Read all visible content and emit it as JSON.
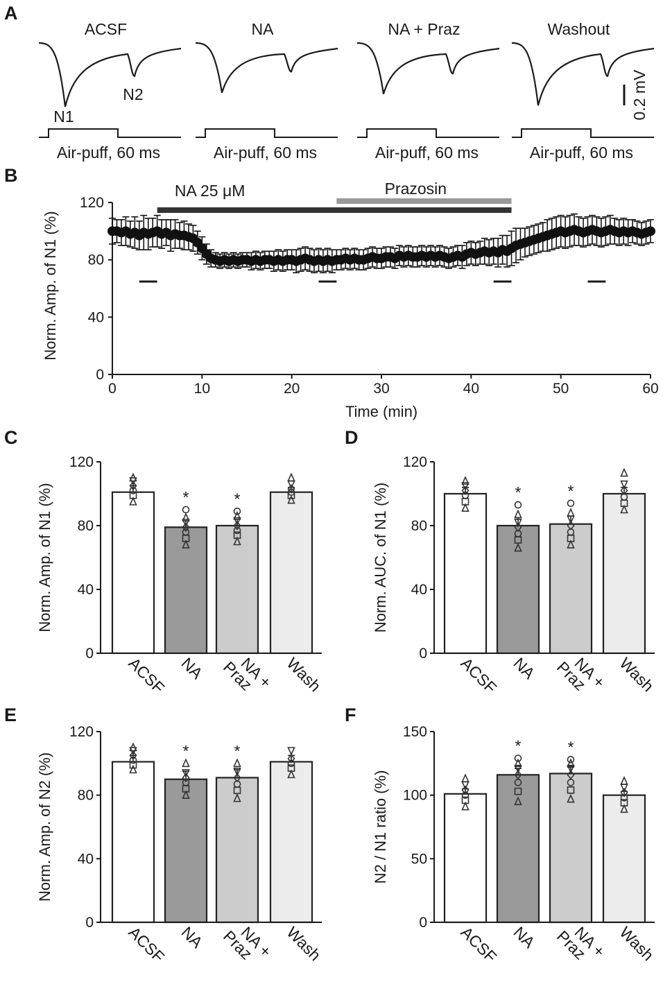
{
  "panels": {
    "A": "A",
    "B": "B",
    "C": "C",
    "D": "D",
    "E": "E",
    "F": "F"
  },
  "panel_a": {
    "traces": [
      {
        "title": "ACSF",
        "stim_label": "Air-puff, 60 ms",
        "n1_amp": 1.0,
        "n2_amp": 0.52
      },
      {
        "title": "NA",
        "stim_label": "Air-puff, 60 ms",
        "n1_amp": 0.78,
        "n2_amp": 0.45
      },
      {
        "title": "NA + Praz",
        "stim_label": "Air-puff, 60 ms",
        "n1_amp": 0.8,
        "n2_amp": 0.48
      },
      {
        "title": "Washout",
        "stim_label": "Air-puff, 60 ms",
        "n1_amp": 0.98,
        "n2_amp": 0.52
      }
    ],
    "peak_labels": {
      "n1": "N1",
      "n2": "N2"
    },
    "scale_bar": "0.2 mV",
    "colors": {
      "trace": "#1a1a1a"
    }
  },
  "chart_data": [
    {
      "panel": "B",
      "type": "line",
      "title": "",
      "xlabel": "Time (min)",
      "ylabel": "Norm. Amp. of N1 (%)",
      "xlim": [
        0,
        60
      ],
      "ylim": [
        0,
        120
      ],
      "xticks": [
        0,
        10,
        20,
        30,
        40,
        50,
        60
      ],
      "yticks": [
        0,
        40,
        80,
        120
      ],
      "drug_bars": [
        {
          "label": "NA 25 μM",
          "start": 5,
          "end": 44.5,
          "color": "#333333"
        },
        {
          "label": "Prazosin",
          "start": 25,
          "end": 44.5,
          "color": "#999999"
        }
      ],
      "analysis_windows": [
        [
          3,
          5
        ],
        [
          23,
          25
        ],
        [
          42.5,
          44.5
        ],
        [
          53,
          55
        ]
      ],
      "series": [
        {
          "name": "N1 amplitude",
          "x": [
            0,
            0.5,
            1,
            1.5,
            2,
            2.5,
            3,
            3.5,
            4,
            4.5,
            5,
            5.5,
            6,
            6.5,
            7,
            7.5,
            8,
            8.5,
            9,
            9.5,
            10,
            10.5,
            11,
            11.5,
            12,
            12.5,
            13,
            13.5,
            14,
            14.5,
            15,
            15.5,
            16,
            16.5,
            17,
            17.5,
            18,
            18.5,
            19,
            19.5,
            20,
            20.5,
            21,
            21.5,
            22,
            22.5,
            23,
            23.5,
            24,
            24.5,
            25,
            25.5,
            26,
            26.5,
            27,
            27.5,
            28,
            28.5,
            29,
            29.5,
            30,
            30.5,
            31,
            31.5,
            32,
            32.5,
            33,
            33.5,
            34,
            34.5,
            35,
            35.5,
            36,
            36.5,
            37,
            37.5,
            38,
            38.5,
            39,
            39.5,
            40,
            40.5,
            41,
            41.5,
            42,
            42.5,
            43,
            43.5,
            44,
            44.5,
            45,
            45.5,
            46,
            46.5,
            47,
            47.5,
            48,
            48.5,
            49,
            49.5,
            50,
            50.5,
            51,
            51.5,
            52,
            52.5,
            53,
            53.5,
            54,
            54.5,
            55,
            55.5,
            56,
            56.5,
            57,
            57.5,
            58,
            58.5,
            59,
            59.5,
            60
          ],
          "y": [
            100,
            100,
            99,
            100,
            98,
            99,
            97,
            99,
            98,
            99,
            100,
            98,
            99,
            97,
            98,
            97,
            97,
            96,
            95,
            92,
            88,
            84,
            81,
            80,
            79,
            80,
            79,
            80,
            79,
            80,
            80,
            79,
            80,
            79,
            80,
            80,
            79,
            80,
            79,
            80,
            80,
            79,
            80,
            81,
            80,
            79,
            80,
            79,
            80,
            79,
            80,
            80,
            81,
            80,
            81,
            80,
            80,
            81,
            82,
            81,
            81,
            82,
            82,
            81,
            83,
            82,
            83,
            82,
            82,
            83,
            82,
            83,
            82,
            83,
            82,
            81,
            82,
            83,
            82,
            84,
            85,
            84,
            85,
            86,
            85,
            86,
            85,
            87,
            86,
            88,
            90,
            91,
            92,
            93,
            94,
            95,
            96,
            97,
            98,
            99,
            100,
            99,
            100,
            101,
            100,
            99,
            100,
            101,
            100,
            99,
            100,
            101,
            100,
            99,
            100,
            99,
            100,
            99,
            98,
            99,
            100
          ],
          "error": [
            9,
            8,
            9,
            10,
            9,
            11,
            10,
            12,
            11,
            10,
            11,
            10,
            9,
            11,
            10,
            9,
            10,
            9,
            9,
            8,
            8,
            7,
            6,
            5,
            5,
            5,
            5,
            5,
            5,
            5,
            5,
            6,
            6,
            6,
            6,
            6,
            7,
            7,
            7,
            7,
            7,
            8,
            8,
            8,
            8,
            8,
            8,
            8,
            8,
            8,
            7,
            7,
            7,
            7,
            7,
            7,
            7,
            7,
            7,
            7,
            7,
            7,
            7,
            7,
            7,
            7,
            7,
            7,
            7,
            7,
            7,
            7,
            7,
            7,
            7,
            7,
            7,
            7,
            8,
            8,
            8,
            8,
            8,
            9,
            9,
            9,
            10,
            10,
            11,
            12,
            12,
            11,
            10,
            10,
            10,
            10,
            10,
            11,
            11,
            11,
            11,
            11,
            11,
            11,
            10,
            10,
            10,
            10,
            10,
            10,
            10,
            10,
            9,
            9,
            9,
            9,
            8,
            8,
            8,
            8,
            8
          ],
          "color": "#111111"
        }
      ]
    },
    {
      "panel": "C",
      "type": "bar",
      "title": "",
      "categories": [
        "ACSF",
        "NA",
        "NA + Praz",
        "Wash"
      ],
      "values": [
        101,
        79,
        80,
        101
      ],
      "errors": [
        4,
        4,
        4,
        3
      ],
      "significance": [
        "",
        "*",
        "*",
        ""
      ],
      "bar_colors": [
        "#ffffff",
        "#9a9a9a",
        "#cccccc",
        "#ececec"
      ],
      "xlabel": "",
      "ylabel": "Norm. Amp. of N1 (%)",
      "ylim": [
        0,
        120
      ],
      "yticks": [
        0,
        40,
        80,
        120
      ],
      "points": [
        [
          95,
          99,
          102,
          105,
          108,
          110
        ],
        [
          68,
          72,
          76,
          79,
          82,
          85,
          90
        ],
        [
          70,
          74,
          77,
          80,
          83,
          86,
          89
        ],
        [
          96,
          99,
          101,
          103,
          106,
          110
        ]
      ]
    },
    {
      "panel": "D",
      "type": "bar",
      "title": "",
      "categories": [
        "ACSF",
        "NA",
        "NA + Praz",
        "Wash"
      ],
      "values": [
        100,
        80,
        81,
        100
      ],
      "errors": [
        4,
        5,
        5,
        4
      ],
      "significance": [
        "",
        "*",
        "*",
        ""
      ],
      "bar_colors": [
        "#ffffff",
        "#9a9a9a",
        "#cccccc",
        "#ececec"
      ],
      "xlabel": "",
      "ylabel": "Norm. AUC. of N1 (%)",
      "ylim": [
        0,
        120
      ],
      "yticks": [
        0,
        40,
        80,
        120
      ],
      "points": [
        [
          91,
          95,
          99,
          102,
          105,
          108
        ],
        [
          66,
          71,
          75,
          79,
          82,
          87,
          93
        ],
        [
          68,
          72,
          76,
          80,
          84,
          88,
          94
        ],
        [
          90,
          94,
          98,
          102,
          106,
          113
        ]
      ]
    },
    {
      "panel": "E",
      "type": "bar",
      "title": "",
      "categories": [
        "ACSF",
        "NA",
        "NA + Praz",
        "Wash"
      ],
      "values": [
        101,
        90,
        91,
        101
      ],
      "errors": [
        4,
        5,
        5,
        4
      ],
      "significance": [
        "",
        "*",
        "*",
        ""
      ],
      "bar_colors": [
        "#ffffff",
        "#9a9a9a",
        "#cccccc",
        "#ececec"
      ],
      "xlabel": "",
      "ylabel": "Norm. Amp. of N2 (%)",
      "ylim": [
        0,
        120
      ],
      "yticks": [
        0,
        40,
        80,
        120
      ],
      "points": [
        [
          96,
          99,
          102,
          105,
          108,
          110
        ],
        [
          80,
          84,
          88,
          91,
          94,
          100
        ],
        [
          78,
          83,
          87,
          91,
          95,
          100
        ],
        [
          93,
          97,
          100,
          103,
          108
        ]
      ]
    },
    {
      "panel": "F",
      "type": "bar",
      "title": "",
      "categories": [
        "ACSF",
        "NA",
        "NA + Praz",
        "Wash"
      ],
      "values": [
        101,
        116,
        117,
        100
      ],
      "errors": [
        4,
        5,
        5,
        3
      ],
      "significance": [
        "",
        "*",
        "*",
        ""
      ],
      "bar_colors": [
        "#ffffff",
        "#9a9a9a",
        "#cccccc",
        "#ececec"
      ],
      "xlabel": "",
      "ylabel": "N2 / N1 ratio (%)",
      "ylim": [
        0,
        150
      ],
      "yticks": [
        0,
        50,
        100,
        150
      ],
      "points": [
        [
          91,
          96,
          100,
          104,
          108,
          113
        ],
        [
          95,
          103,
          110,
          116,
          121,
          125,
          129
        ],
        [
          97,
          104,
          110,
          116,
          121,
          125,
          128
        ],
        [
          89,
          94,
          98,
          102,
          106,
          111
        ]
      ]
    }
  ]
}
